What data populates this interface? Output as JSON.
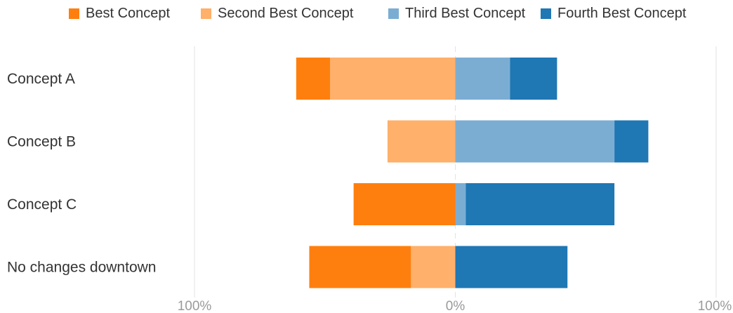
{
  "chart_data": {
    "type": "bar",
    "orientation": "horizontal",
    "stacked": "diverging",
    "categories": [
      "Concept A",
      "Concept B",
      "Concept C",
      "No changes downtown"
    ],
    "series": [
      {
        "name": "Best Concept",
        "side": "left",
        "values": [
          13,
          0,
          39,
          39
        ],
        "color": "#ff7f0e"
      },
      {
        "name": "Second Best Concept",
        "side": "left",
        "values": [
          48,
          26,
          0,
          17
        ],
        "color": "#ffb06a"
      },
      {
        "name": "Third Best Concept",
        "side": "right",
        "values": [
          21,
          61,
          4,
          0
        ],
        "color": "#7badd3"
      },
      {
        "name": "Fourth Best Concept",
        "side": "right",
        "values": [
          18,
          13,
          57,
          43
        ],
        "color": "#1f77b4"
      }
    ],
    "xlim": [
      -100,
      100
    ],
    "x_ticks": [
      "100%",
      "0%",
      "100%"
    ],
    "legend_position": "top",
    "grid": "vertical lines at -100%, 0% (dashed), 100%"
  }
}
